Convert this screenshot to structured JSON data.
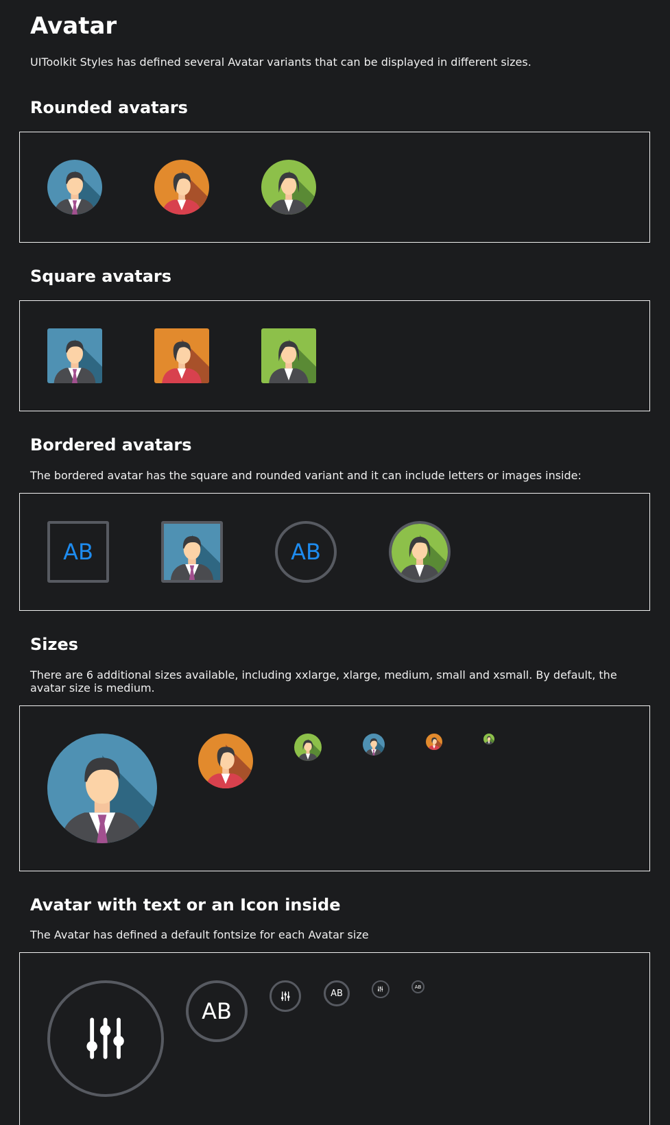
{
  "page": {
    "title": "Avatar",
    "intro": "UIToolkit Styles has defined several Avatar variants that can be displayed in different sizes."
  },
  "sections": {
    "rounded": {
      "heading": "Rounded avatars"
    },
    "square": {
      "heading": "Square avatars"
    },
    "bordered": {
      "heading": "Bordered avatars",
      "description": "The bordered avatar has the square and rounded variant and it can include letters or images inside:",
      "letters": "AB"
    },
    "sizes": {
      "heading": "Sizes",
      "description": "There are 6 additional sizes available, including xxlarge, xlarge, medium, small and xsmall. By default, the avatar size is medium."
    },
    "text_icon": {
      "heading": "Avatar with text or an Icon inside",
      "description": "The Avatar has defined a default fontsize for each Avatar size",
      "letters": "AB"
    }
  },
  "colors": {
    "background": "#1b1c1e",
    "border": "#575a61",
    "letters_blue": "#1e8cf0",
    "avatar_blue": "#4f91b3",
    "avatar_orange": "#e28a2d",
    "avatar_green": "#8dc04a"
  },
  "icons": {
    "person_male": "person-male-icon",
    "person_female": "person-female-icon",
    "sliders": "sliders-icon"
  }
}
